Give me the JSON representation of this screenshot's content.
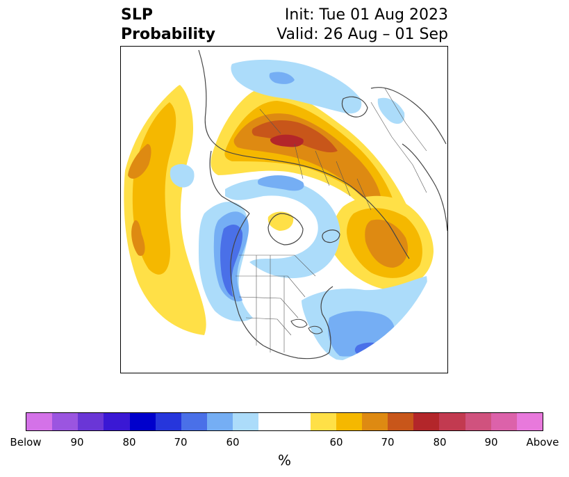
{
  "title": {
    "left_line1": "SLP",
    "left_line2": "Probability",
    "right_line1": "Init: Tue 01 Aug 2023",
    "right_line2": "Valid: 26 Aug – 01 Sep"
  },
  "colorbar": {
    "colors": {
      "below_95": "#d472e8",
      "below_90": "#9b55e0",
      "below_85": "#6a36d6",
      "below_80": "#3a18d4",
      "below_75": "#0000cc",
      "below_70": "#2636dc",
      "below_65": "#4a70e8",
      "below_60": "#75aef4",
      "below_55": "#acdcfa",
      "neutral": "#ffffff",
      "above_55": "#ffe047",
      "above_60": "#f5b800",
      "above_65": "#de8a12",
      "above_70": "#c8561a",
      "above_75": "#b3262a",
      "above_80": "#c23a50",
      "above_85": "#d0527e",
      "above_90": "#dc62aa",
      "above_95": "#e879dc"
    },
    "tick_labels": [
      "Below",
      "90",
      "80",
      "70",
      "60",
      "60",
      "70",
      "80",
      "90",
      "Above"
    ],
    "unit_label": "%"
  },
  "map": {
    "projection": "north-polar-stereographic",
    "land_color": "#ffffff",
    "coastline_color": "#444444"
  }
}
